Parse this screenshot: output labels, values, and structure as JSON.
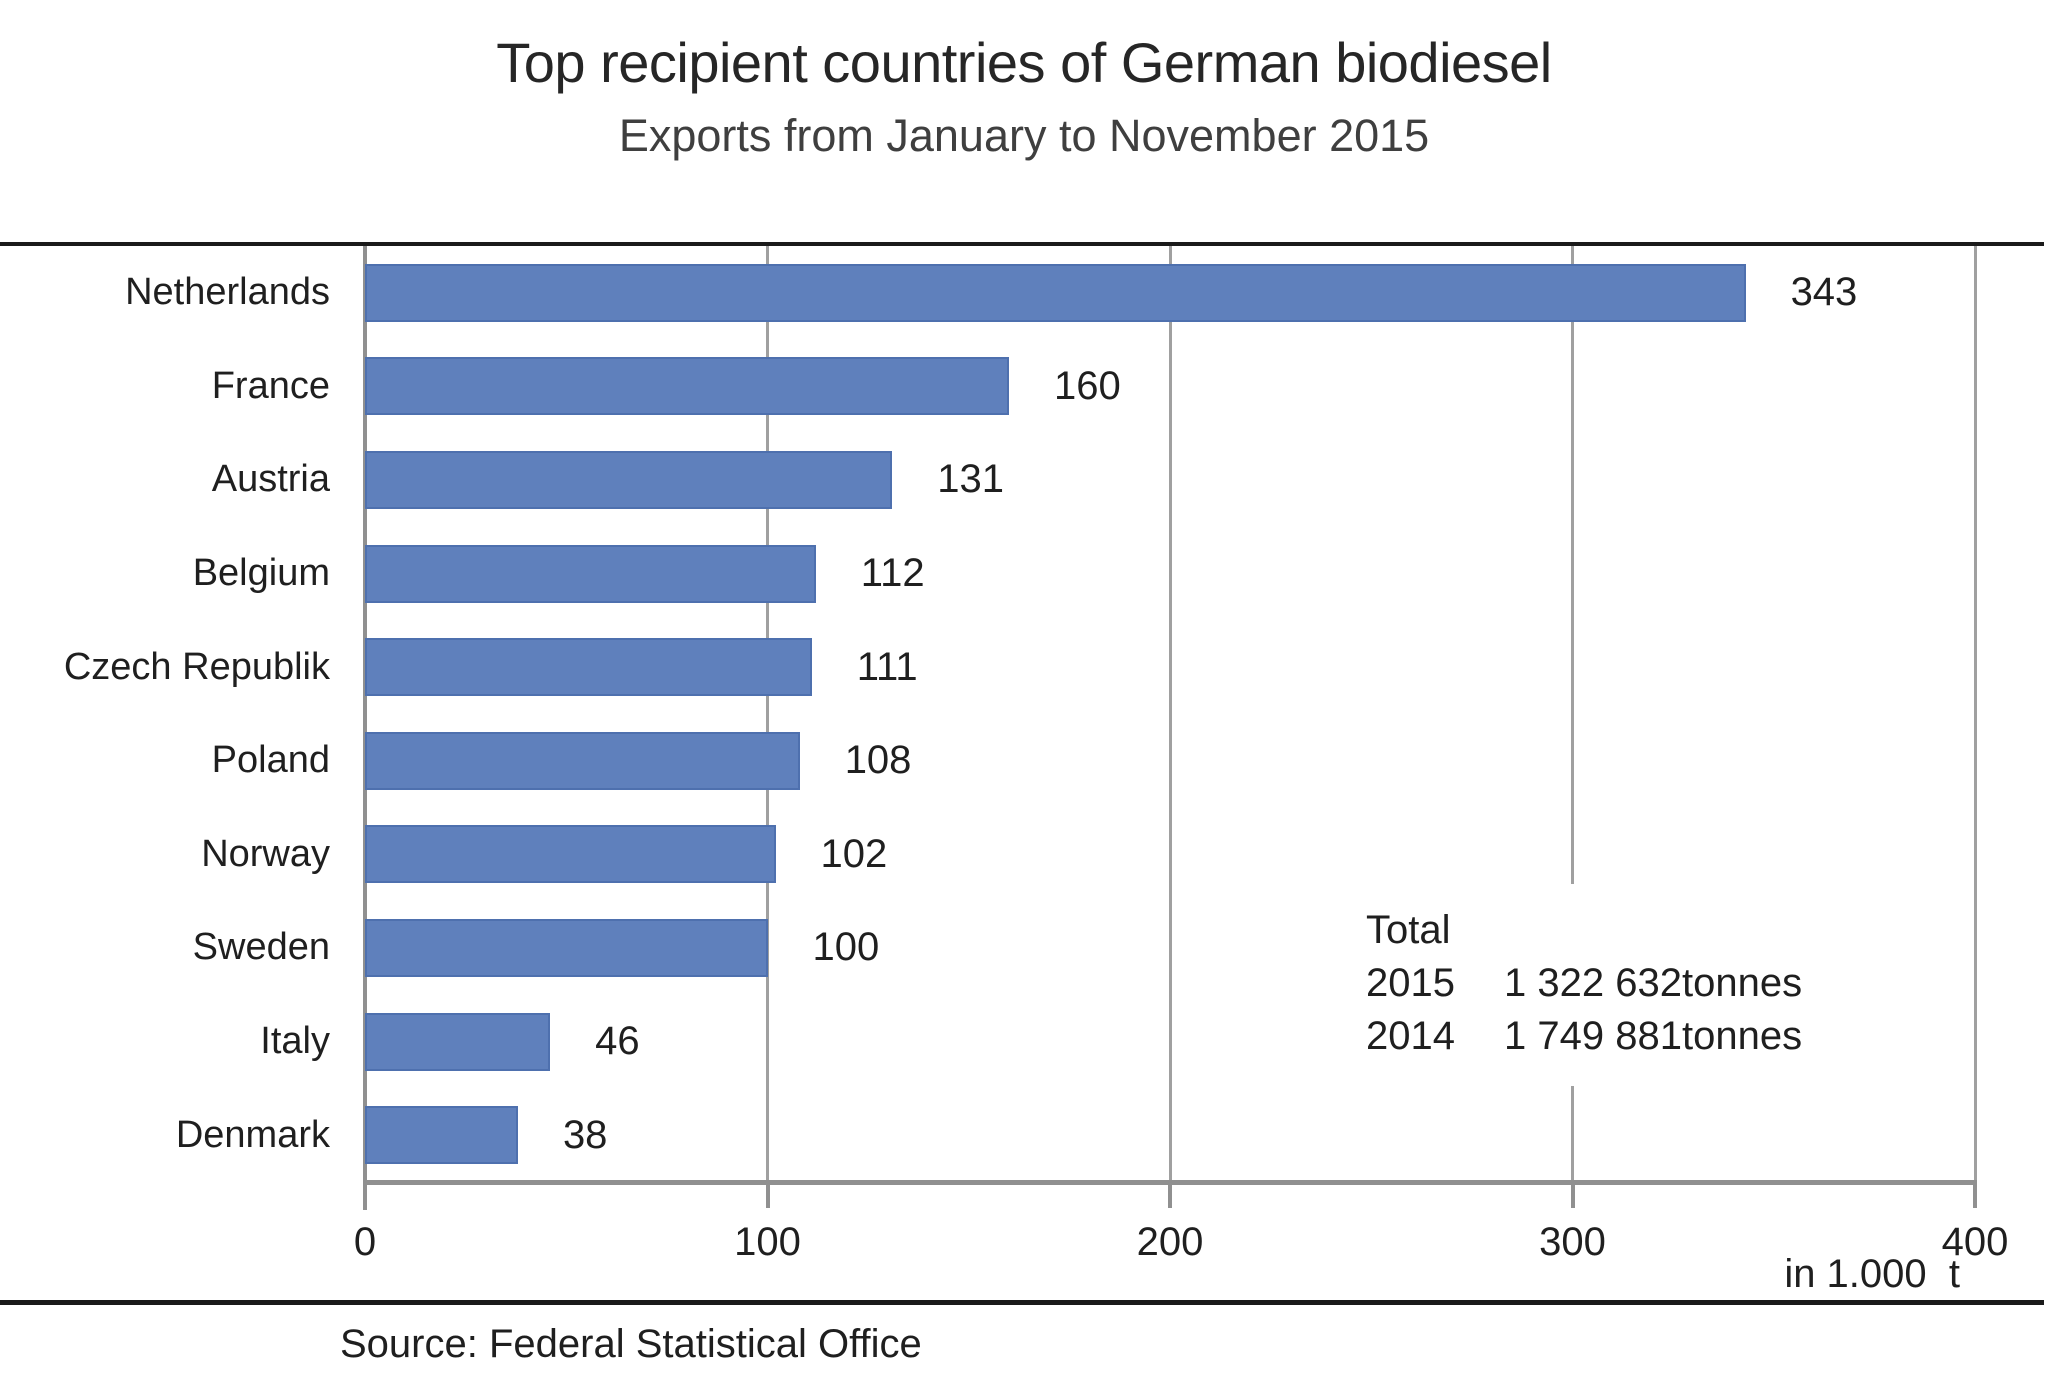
{
  "header": {
    "title": "Top recipient countries of German biodiesel",
    "subtitle": "Exports from January to November 2015"
  },
  "chart_data": {
    "type": "bar",
    "orientation": "horizontal",
    "categories": [
      "Netherlands",
      "France",
      "Austria",
      "Belgium",
      "Czech Republik",
      "Poland",
      "Norway",
      "Sweden",
      "Italy",
      "Denmark"
    ],
    "values": [
      343,
      160,
      131,
      112,
      111,
      108,
      102,
      100,
      46,
      38
    ],
    "value_labels": [
      "343",
      "160",
      "131",
      "112",
      "111",
      "108",
      "102",
      "100",
      "46",
      "38"
    ],
    "xlim": [
      0,
      400
    ],
    "xticks": [
      0,
      100,
      200,
      300,
      400
    ],
    "xtick_labels": [
      "0",
      "100",
      "200",
      "300",
      "400"
    ],
    "unit_label": "in 1.000  t",
    "grid": "vertical",
    "legend": "none",
    "colors": {
      "bar_fill": "#5F80BC",
      "bar_border": "#4E70AE",
      "gridline": "#A0A0A0",
      "axis": "#909090",
      "rule": "#1A1A1A"
    },
    "annotation": {
      "title": "Total",
      "rows": [
        {
          "year": "2015",
          "value": "1 322 632",
          "unit": "tonnes"
        },
        {
          "year": "2014",
          "value": "1 749 881",
          "unit": "tonnes"
        }
      ]
    }
  },
  "footer": {
    "source": "Source: Federal Statistical Office"
  }
}
